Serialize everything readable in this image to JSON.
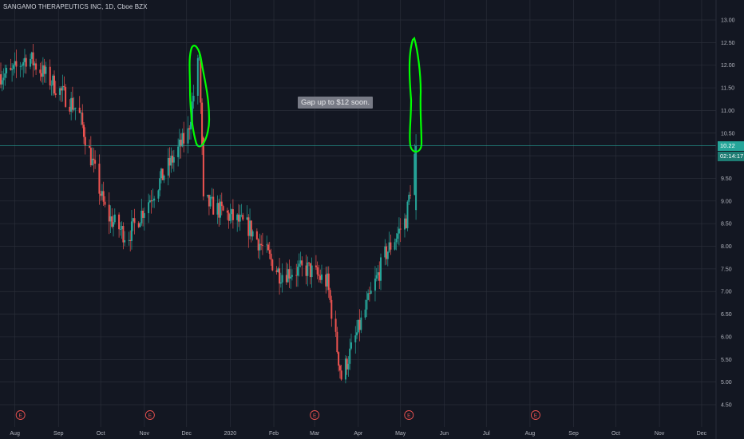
{
  "header": {
    "title": "SANGAMO THERAPEUTICS INC, 1D, Cboe BZX"
  },
  "note": {
    "text": "Gap up to $12 soon."
  },
  "price_badge": {
    "price": "10.22",
    "countdown": "02:14:17"
  },
  "colors": {
    "background": "#131722",
    "grid": "#2a2e39",
    "up": "#26a69a",
    "down": "#ef5350",
    "marker": "#00ff00",
    "badge": "#26a69a"
  },
  "chart_data": {
    "type": "candlestick",
    "y_ticks": [
      "13.00",
      "12.50",
      "12.00",
      "11.50",
      "11.00",
      "10.50",
      "10.00",
      "9.50",
      "9.00",
      "8.50",
      "8.00",
      "7.50",
      "7.00",
      "6.50",
      "6.00",
      "5.50",
      "5.00",
      "4.50"
    ],
    "x_ticks": [
      "Aug",
      "Sep",
      "Oct",
      "Nov",
      "Dec",
      "2020",
      "Feb",
      "Mar",
      "Apr",
      "May",
      "Jun",
      "Jul",
      "Aug",
      "Sep",
      "Oct",
      "Nov",
      "Dec"
    ],
    "ylim": [
      4.3,
      13.15
    ],
    "current_price": 10.22,
    "earnings_markers": [
      "Aug",
      "Nov",
      "Mar",
      "May",
      "Aug"
    ],
    "key_points": [
      {
        "date": "2019-07-29",
        "close": 11.8
      },
      {
        "date": "2019-08-10",
        "close": 12.2
      },
      {
        "date": "2019-09-15",
        "close": 11.0
      },
      {
        "date": "2019-10-05",
        "close": 8.7
      },
      {
        "date": "2019-10-20",
        "close": 8.2
      },
      {
        "date": "2019-11-15",
        "close": 9.6
      },
      {
        "date": "2019-12-02",
        "close": 10.5
      },
      {
        "date": "2019-12-10",
        "close": 12.2
      },
      {
        "date": "2019-12-13",
        "close": 9.0
      },
      {
        "date": "2020-01-15",
        "close": 8.4
      },
      {
        "date": "2020-02-05",
        "close": 7.4
      },
      {
        "date": "2020-02-25",
        "close": 7.5
      },
      {
        "date": "2020-03-10",
        "close": 7.2
      },
      {
        "date": "2020-03-20",
        "close": 5.1
      },
      {
        "date": "2020-04-05",
        "close": 6.5
      },
      {
        "date": "2020-04-20",
        "close": 7.8
      },
      {
        "date": "2020-05-05",
        "close": 8.6
      },
      {
        "date": "2020-05-12",
        "close": 10.22
      }
    ]
  }
}
